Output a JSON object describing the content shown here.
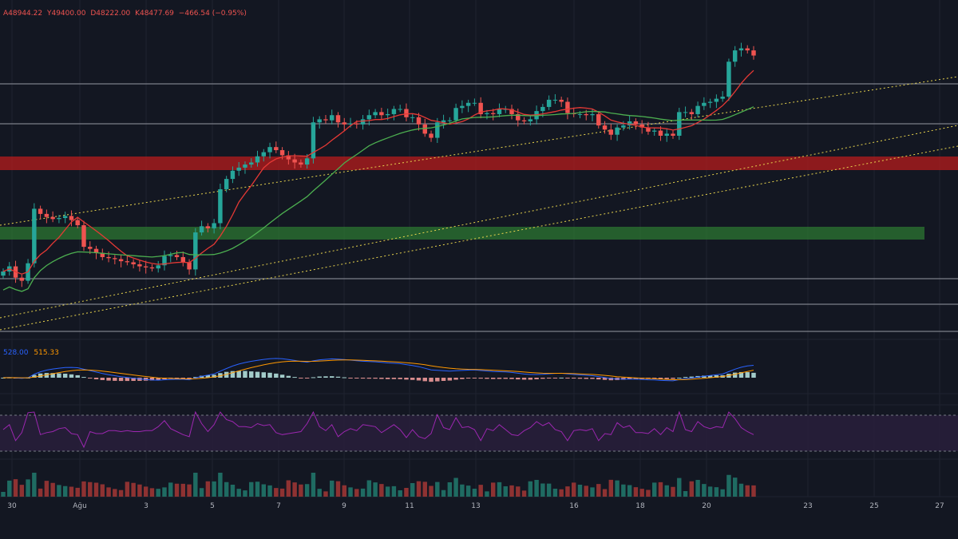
{
  "header": {
    "open": "A48944.22",
    "high": "Y49400.00",
    "low": "D48222.00",
    "close": "K48477.69",
    "change": "−466.54 (−0.95%)"
  },
  "colors": {
    "background": "#131722",
    "up": "#26a69a",
    "down": "#ef5350",
    "ma_fast": "#e53935",
    "ma_slow": "#4caf50",
    "channel": "#e8d44d",
    "resistance_zone": "#b71c1c",
    "support_zone": "#2e7d32",
    "macd": "#2962ff",
    "signal": "#ff9800",
    "rsi": "#9c27b0"
  },
  "macd_labels": {
    "macd": "528.00",
    "signal": "515.33"
  },
  "chart_data": {
    "type": "candlestick",
    "title": "",
    "x_ticks": [
      "30",
      "Ağu",
      "3",
      "5",
      "7",
      "9",
      "11",
      "13",
      "16",
      "18",
      "20",
      "23",
      "25",
      "27"
    ],
    "close_series": [
      41300,
      41550,
      41000,
      40850,
      41700,
      44350,
      44100,
      43950,
      43850,
      43900,
      44000,
      43800,
      43550,
      42500,
      42400,
      42200,
      42000,
      41950,
      41900,
      41800,
      41750,
      41650,
      41550,
      41500,
      41450,
      41600,
      42050,
      42100,
      42000,
      41750,
      41400,
      43200,
      43500,
      43400,
      43650,
      45300,
      45800,
      46200,
      46350,
      46500,
      46600,
      46900,
      47100,
      47350,
      47200,
      46950,
      46750,
      46600,
      46500,
      46800,
      48550,
      48700,
      48650,
      48900,
      48550,
      48450,
      48500,
      48450,
      48700,
      48900,
      49050,
      48900,
      48950,
      49200,
      49200,
      48800,
      48800,
      48450,
      48000,
      47800,
      48550,
      48650,
      48650,
      49250,
      49350,
      49500,
      49500,
      48950,
      49000,
      48950,
      49200,
      49200,
      48950,
      48650,
      48600,
      48700,
      49100,
      49300,
      49650,
      49650,
      49550,
      49000,
      48950,
      48950,
      48900,
      48950,
      48400,
      48200,
      47950,
      48300,
      48400,
      48600,
      48450,
      48300,
      48100,
      48150,
      47900,
      48000,
      47900,
      49050,
      49050,
      48950,
      49350,
      49500,
      49550,
      49700,
      49800,
      51500,
      52050,
      52150,
      52050,
      51800
    ]
  },
  "axis": {
    "y_min": 38000,
    "y_max": 54500
  }
}
